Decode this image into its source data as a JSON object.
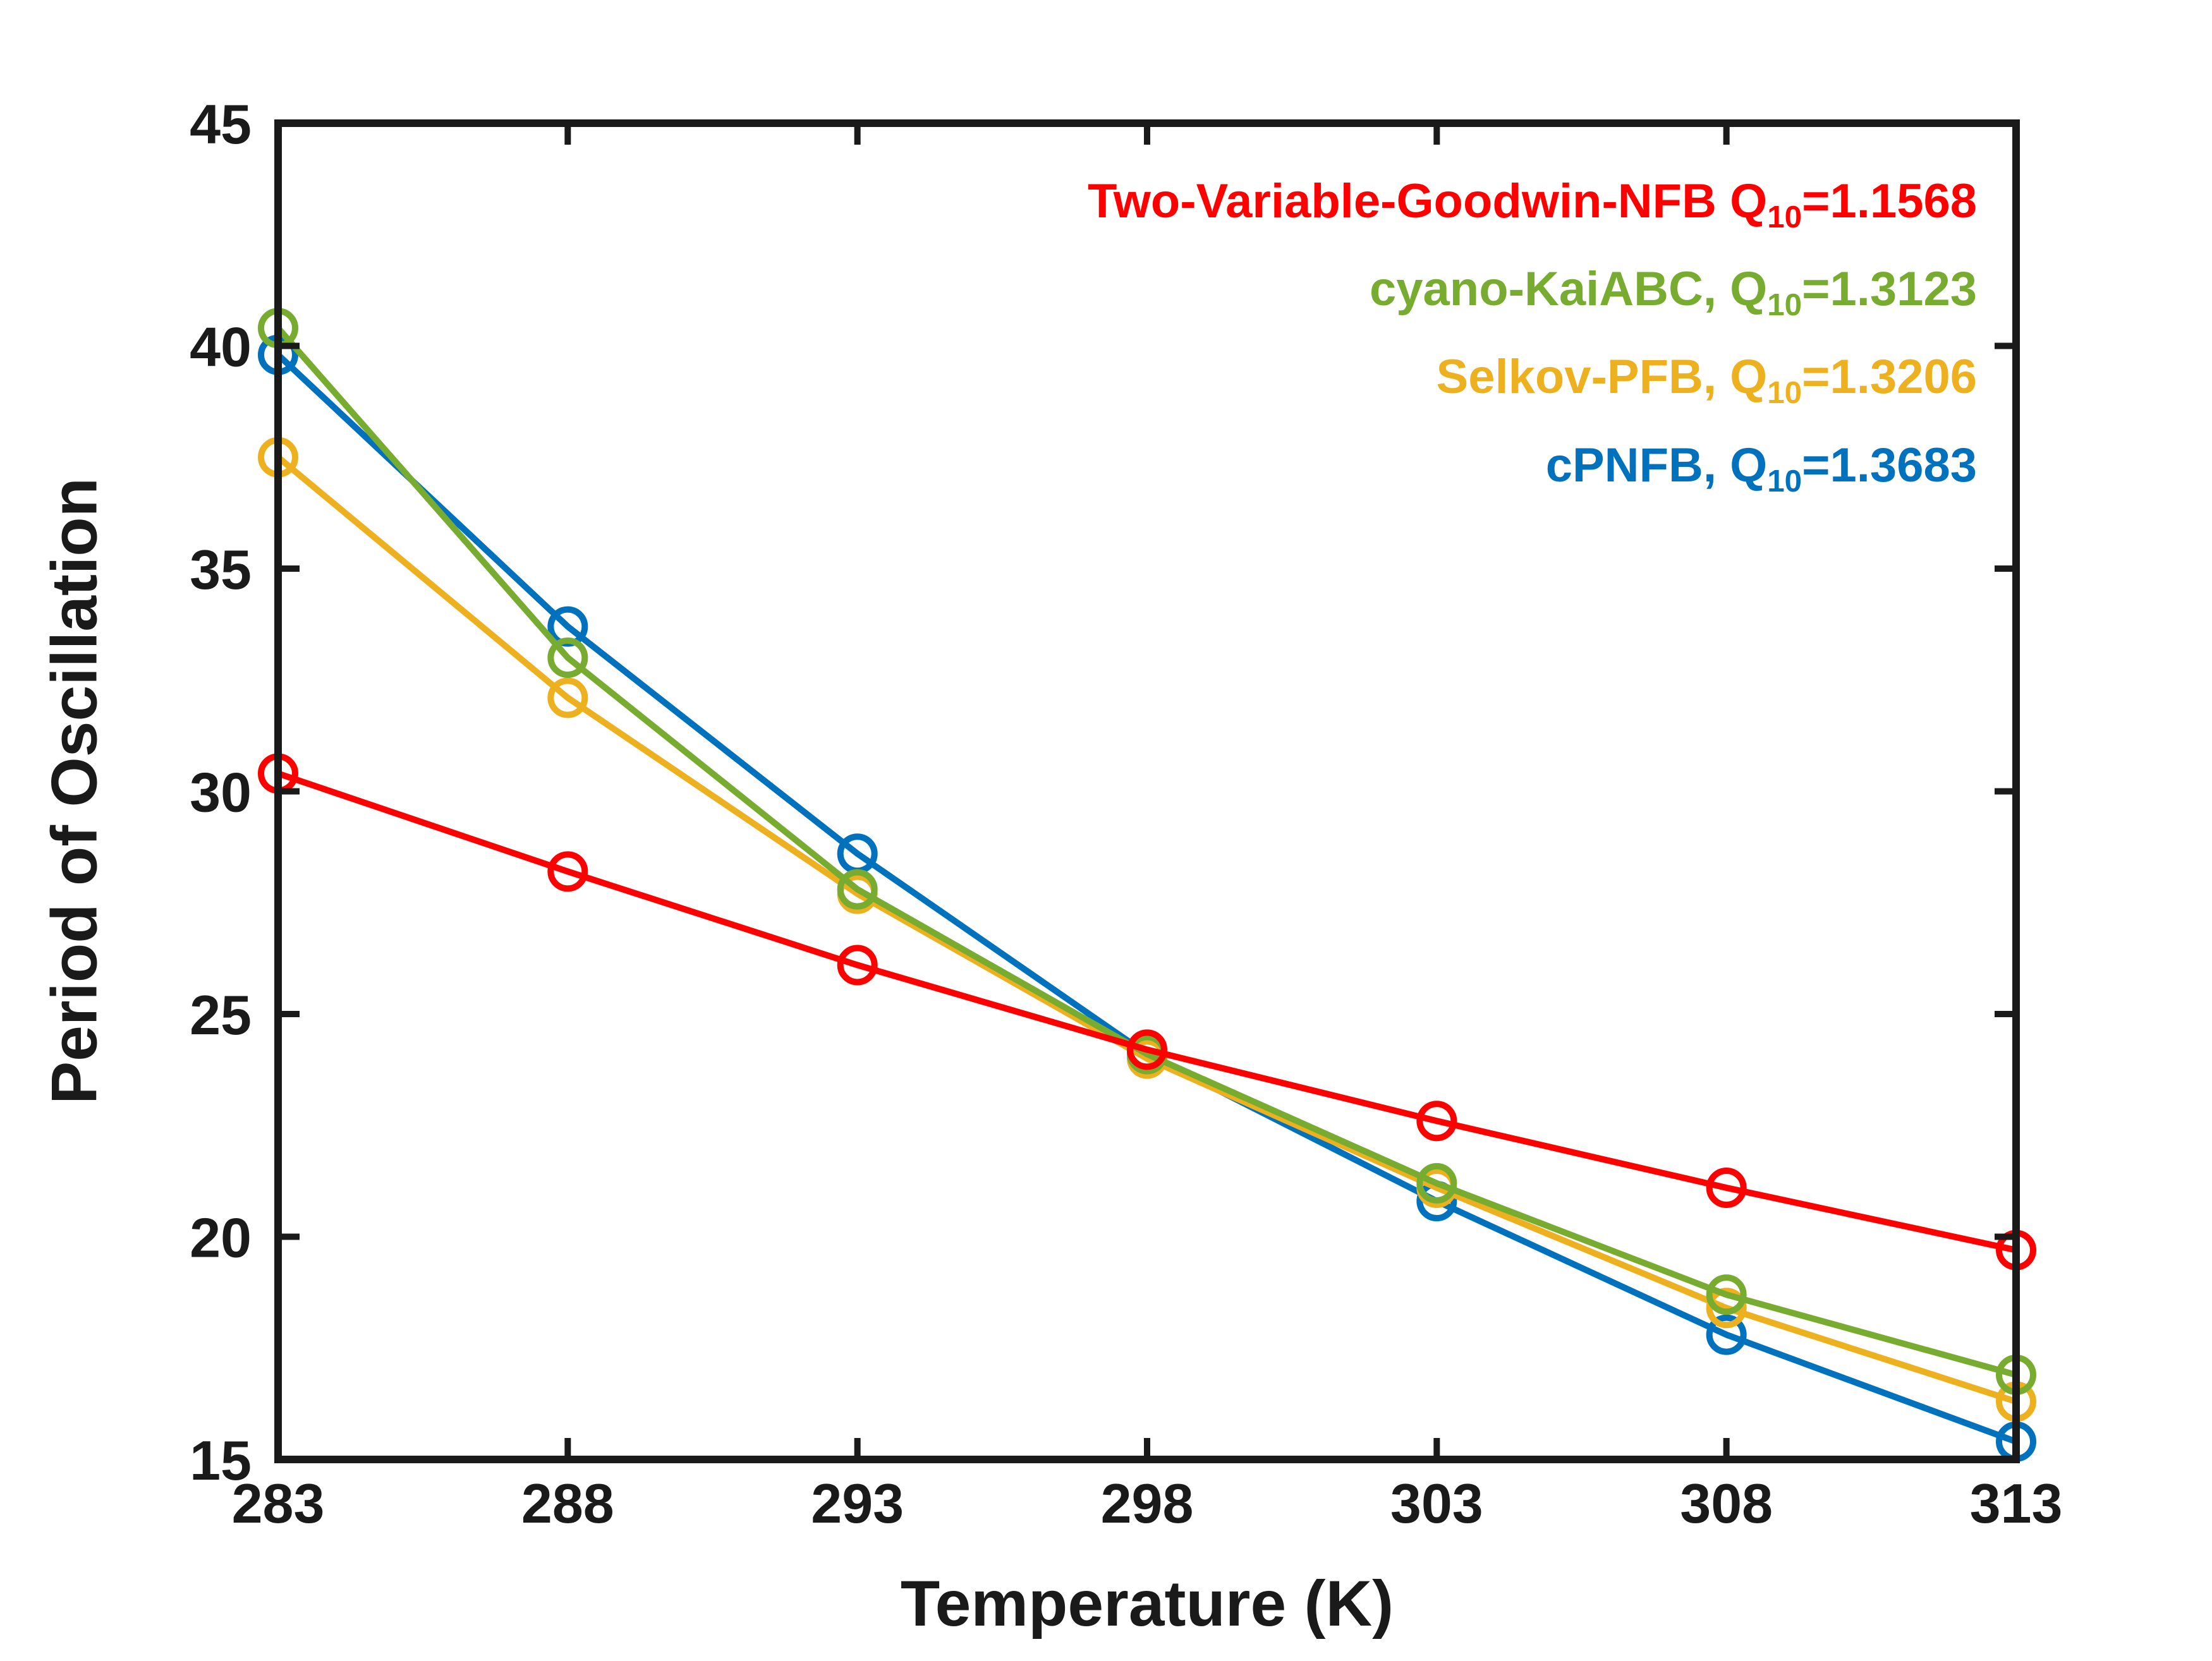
{
  "chart_data": {
    "type": "line",
    "title": "",
    "xlabel": "Temperature (K)",
    "ylabel": "Period of Oscillation",
    "xlim": [
      283,
      313
    ],
    "ylim": [
      15,
      45
    ],
    "xticks": [
      "283",
      "288",
      "293",
      "298",
      "303",
      "308",
      "313"
    ],
    "yticks": [
      "15",
      "20",
      "25",
      "30",
      "35",
      "40",
      "45"
    ],
    "grid": false,
    "legend_position": "top-right-inside",
    "marker": "open-circle",
    "x": [
      283,
      288,
      293,
      298,
      303,
      308,
      313
    ],
    "series": [
      {
        "name": "Two-Variable-Goodwin-NFB",
        "q10": "1.1568",
        "color": "#ff0000",
        "values": [
          30.4,
          28.2,
          26.1,
          24.2,
          22.6,
          21.1,
          19.7
        ]
      },
      {
        "name": "cyano-KaiABC",
        "q10": "1.3123",
        "color": "#77ac30",
        "values": [
          40.4,
          33.0,
          27.8,
          24.1,
          21.2,
          18.7,
          16.9
        ]
      },
      {
        "name": "Selkov-PFB",
        "q10": "1.3206",
        "color": "#edb120",
        "values": [
          37.5,
          32.1,
          27.7,
          24.0,
          21.1,
          18.4,
          16.3
        ]
      },
      {
        "name": "cPNFB",
        "q10": "1.3683",
        "color": "#0072bd",
        "values": [
          39.8,
          33.7,
          28.6,
          24.1,
          20.8,
          17.8,
          15.4
        ]
      }
    ],
    "draw_order": [
      3,
      2,
      1,
      0
    ]
  },
  "legend": [
    {
      "prefix": "Two-Variable-Goodwin-NFB Q",
      "sub": "10",
      "suffix": "=1.1568",
      "color": "#ff0000"
    },
    {
      "prefix": "cyano-KaiABC, Q",
      "sub": "10",
      "suffix": "=1.3123",
      "color": "#77ac30"
    },
    {
      "prefix": "Selkov-PFB, Q",
      "sub": "10",
      "suffix": "=1.3206",
      "color": "#edb120"
    },
    {
      "prefix": "cPNFB, Q",
      "sub": "10",
      "suffix": "=1.3683",
      "color": "#0072bd"
    }
  ],
  "axis_color": "#1a1a1a"
}
